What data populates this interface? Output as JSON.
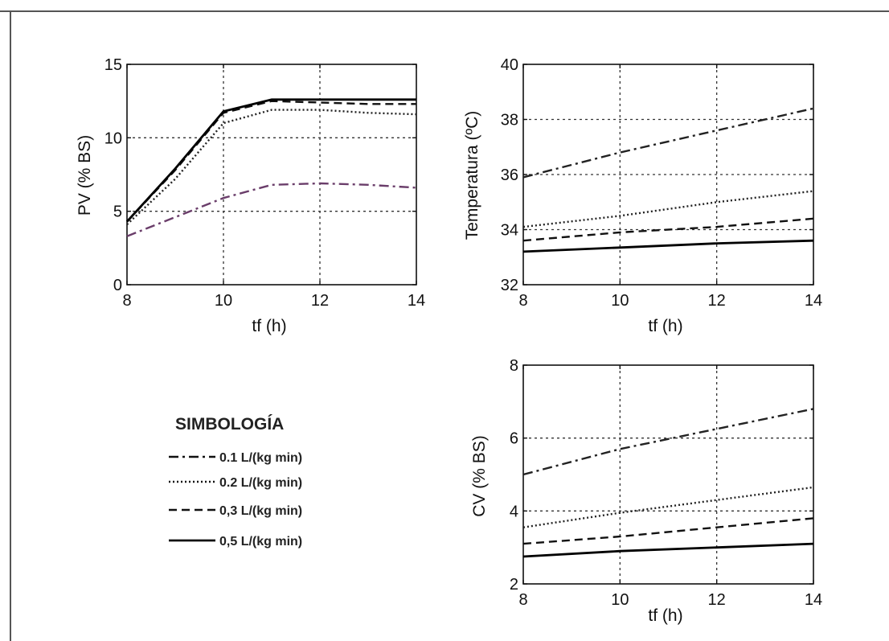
{
  "styles": {
    "dashdot": "12,5,3,5",
    "dotted": "2,3",
    "dashed": "10,6",
    "solid": ""
  },
  "legend": {
    "title": "SIMBOLOGÍA",
    "entries": [
      {
        "label": "0.1 L/(kg min)",
        "style": "dashdot"
      },
      {
        "label": "0.2 L/(kg min)",
        "style": "dotted"
      },
      {
        "label": "0,3 L/(kg min)",
        "style": "dashed"
      },
      {
        "label": "0,5 L/(kg min)",
        "style": "solid"
      }
    ]
  },
  "chart_data": [
    {
      "type": "line",
      "xlabel": "tf (h)",
      "ylabel": "PV (% BS)",
      "xlim": [
        8,
        14
      ],
      "ylim": [
        0,
        15
      ],
      "xticks": [
        8,
        10,
        12,
        14
      ],
      "yticks": [
        0,
        5,
        10,
        15
      ],
      "grid": true,
      "series": [
        {
          "style": "dashdot",
          "color": "#6a3d6a",
          "x": [
            8,
            9,
            10,
            11,
            12,
            13,
            14
          ],
          "y": [
            3.3,
            4.6,
            5.9,
            6.8,
            6.9,
            6.8,
            6.6
          ]
        },
        {
          "style": "dotted",
          "color": "#222222",
          "x": [
            8,
            9,
            10,
            11,
            12,
            13,
            14
          ],
          "y": [
            4.1,
            7.2,
            11.0,
            11.9,
            11.9,
            11.7,
            11.6
          ]
        },
        {
          "style": "dashed",
          "color": "#111111",
          "x": [
            8,
            9,
            10,
            11,
            12,
            13,
            14
          ],
          "y": [
            4.3,
            7.8,
            11.7,
            12.5,
            12.4,
            12.3,
            12.3
          ]
        },
        {
          "style": "solid",
          "color": "#000000",
          "x": [
            8,
            9,
            10,
            11,
            12,
            13,
            14
          ],
          "y": [
            4.3,
            7.9,
            11.8,
            12.6,
            12.6,
            12.6,
            12.6
          ]
        }
      ]
    },
    {
      "type": "line",
      "xlabel": "tf (h)",
      "ylabel": "Temperatura (ºC)",
      "xlim": [
        8,
        14
      ],
      "ylim": [
        32,
        40
      ],
      "xticks": [
        8,
        10,
        12,
        14
      ],
      "yticks": [
        32,
        34,
        36,
        38,
        40
      ],
      "grid": true,
      "series": [
        {
          "style": "dashdot",
          "color": "#222222",
          "x": [
            8,
            10,
            12,
            14
          ],
          "y": [
            35.9,
            36.8,
            37.6,
            38.4
          ]
        },
        {
          "style": "dotted",
          "color": "#222222",
          "x": [
            8,
            10,
            12,
            14
          ],
          "y": [
            34.1,
            34.5,
            35.0,
            35.4
          ]
        },
        {
          "style": "dashed",
          "color": "#111111",
          "x": [
            8,
            10,
            12,
            14
          ],
          "y": [
            33.6,
            33.9,
            34.1,
            34.4
          ]
        },
        {
          "style": "solid",
          "color": "#000000",
          "x": [
            8,
            10,
            12,
            14
          ],
          "y": [
            33.2,
            33.35,
            33.5,
            33.6
          ]
        }
      ]
    },
    {
      "type": "line",
      "xlabel": "tf (h)",
      "ylabel": "CV (% BS)",
      "xlim": [
        8,
        14
      ],
      "ylim": [
        2,
        8
      ],
      "xticks": [
        8,
        10,
        12,
        14
      ],
      "yticks": [
        2,
        4,
        6,
        8
      ],
      "grid": true,
      "series": [
        {
          "style": "dashdot",
          "color": "#222222",
          "x": [
            8,
            10,
            12,
            14
          ],
          "y": [
            5.0,
            5.7,
            6.25,
            6.8
          ]
        },
        {
          "style": "dotted",
          "color": "#222222",
          "x": [
            8,
            10,
            12,
            14
          ],
          "y": [
            3.55,
            3.95,
            4.3,
            4.65
          ]
        },
        {
          "style": "dashed",
          "color": "#111111",
          "x": [
            8,
            10,
            12,
            14
          ],
          "y": [
            3.1,
            3.3,
            3.55,
            3.8
          ]
        },
        {
          "style": "solid",
          "color": "#000000",
          "x": [
            8,
            10,
            12,
            14
          ],
          "y": [
            2.75,
            2.9,
            3.0,
            3.1
          ]
        }
      ]
    }
  ]
}
